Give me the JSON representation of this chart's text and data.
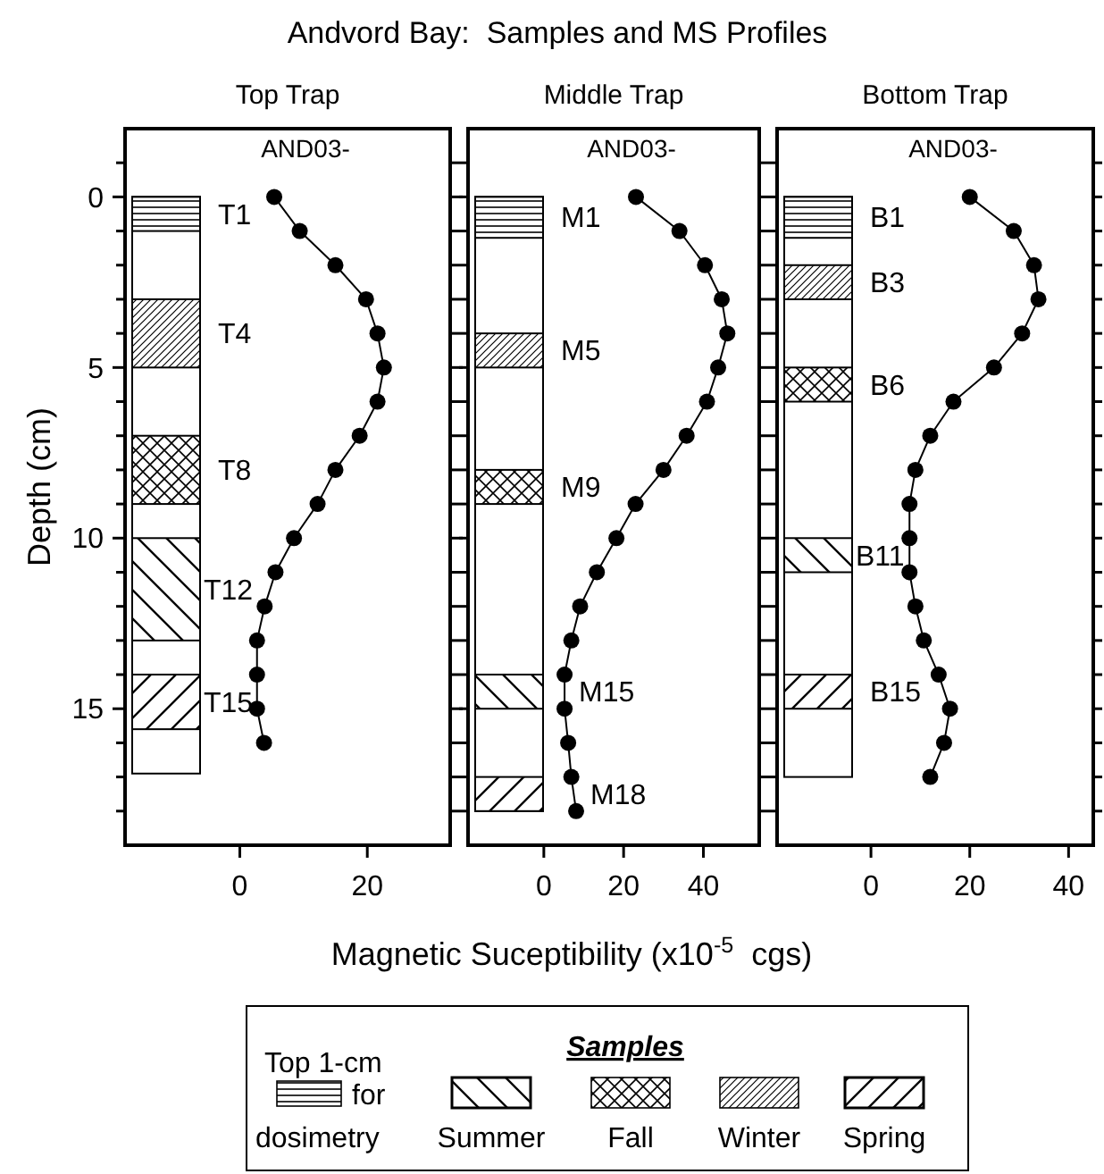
{
  "chart_data": [
    {
      "type": "line",
      "subtitle": "Top Trap",
      "ylabel": "Depth (cm)",
      "marker": "circle",
      "line_style": "solid",
      "grid": false,
      "series": [
        {
          "color": "#000000",
          "x": [
            5.4,
            9.4,
            15,
            19.8,
            21.6,
            22.6,
            21.6,
            18.8,
            15,
            12.2,
            8.5,
            5.6,
            3.9,
            2.7,
            2.7,
            2.7,
            3.8
          ],
          "values": [
            0,
            1,
            2,
            3,
            4,
            5,
            6,
            7,
            8,
            9,
            10,
            11,
            12,
            13,
            14,
            15,
            16
          ]
        }
      ],
      "xlim": [
        -18,
        33
      ],
      "xticks": [
        0,
        20
      ],
      "ylim": [
        19,
        -2
      ],
      "yticks": [
        {
          "value": -1,
          "label": null
        },
        0,
        {
          "value": 1,
          "label": null
        },
        {
          "value": 2,
          "label": null
        },
        {
          "value": 3,
          "label": null
        },
        {
          "value": 4,
          "label": null
        },
        5,
        {
          "value": 6,
          "label": null
        },
        {
          "value": 7,
          "label": null
        },
        {
          "value": 8,
          "label": null
        },
        {
          "value": 9,
          "label": null
        },
        10,
        {
          "value": 11,
          "label": null
        },
        {
          "value": 12,
          "label": null
        },
        {
          "value": 13,
          "label": null
        },
        {
          "value": 14,
          "label": null
        },
        15,
        {
          "value": 16,
          "label": null
        },
        {
          "value": 17,
          "label": null
        },
        {
          "value": 18,
          "label": null
        }
      ],
      "bands": [
        {
          "axis": "y",
          "from": 0,
          "to": 16.9
        },
        {
          "axis": "y",
          "from": 0,
          "to": 1,
          "label": "T1"
        },
        {
          "axis": "y",
          "from": 10,
          "to": 13,
          "label": "T12"
        },
        {
          "axis": "y",
          "from": 7,
          "to": 9,
          "label": "T8"
        },
        {
          "axis": "y",
          "from": 3,
          "to": 5,
          "label": "T4"
        },
        {
          "axis": "y",
          "from": 14,
          "to": 15.6,
          "label": "T15"
        }
      ],
      "annotations": [
        "AND03-"
      ]
    },
    {
      "type": "line",
      "title": "Andvord Bay:  Samples and MS Profiles",
      "subtitle": "Middle Trap",
      "xlabel": "Magnetic Suceptibility (x10$^{-5}$  cgs)",
      "marker": "circle",
      "line_style": "solid",
      "grid": false,
      "tick_labels": "x",
      "series": [
        {
          "color": "#000000",
          "x": [
            23.1,
            34,
            40.4,
            44.6,
            46,
            43.7,
            40.9,
            35.8,
            30,
            23,
            18.2,
            13.3,
            9.1,
            6.9,
            5.2,
            5.2,
            6.1,
            6.9,
            8.1
          ],
          "values": [
            0,
            1,
            2,
            3,
            4,
            5,
            6,
            7,
            8,
            9,
            10,
            11,
            12,
            13,
            14,
            15,
            16,
            17,
            18
          ]
        }
      ],
      "xlim": [
        -19,
        54
      ],
      "xticks": [
        0,
        20,
        40
      ],
      "ylim": [
        19,
        -2
      ],
      "yticks": [
        {
          "value": -1,
          "label": null
        },
        {
          "value": 0,
          "label": null
        },
        {
          "value": 1,
          "label": null
        },
        {
          "value": 2,
          "label": null
        },
        {
          "value": 3,
          "label": null
        },
        {
          "value": 4,
          "label": null
        },
        {
          "value": 5,
          "label": null
        },
        {
          "value": 6,
          "label": null
        },
        {
          "value": 7,
          "label": null
        },
        {
          "value": 8,
          "label": null
        },
        {
          "value": 9,
          "label": null
        },
        {
          "value": 10,
          "label": null
        },
        {
          "value": 11,
          "label": null
        },
        {
          "value": 12,
          "label": null
        },
        {
          "value": 13,
          "label": null
        },
        {
          "value": 14,
          "label": null
        },
        {
          "value": 15,
          "label": null
        },
        {
          "value": 16,
          "label": null
        },
        {
          "value": 17,
          "label": null
        },
        {
          "value": 18,
          "label": null
        }
      ],
      "bands": [
        {
          "axis": "y",
          "from": 0,
          "to": 18
        },
        {
          "axis": "y",
          "from": 0,
          "to": 1.2,
          "label": "M1"
        },
        {
          "axis": "y",
          "from": 14,
          "to": 15,
          "label": "M15"
        },
        {
          "axis": "y",
          "from": 8,
          "to": 9,
          "label": "M9"
        },
        {
          "axis": "y",
          "from": 4,
          "to": 5,
          "label": "M5"
        },
        {
          "axis": "y",
          "from": 17,
          "to": 18,
          "label": "M18"
        }
      ],
      "annotations": [
        "AND03-"
      ]
    },
    {
      "type": "line",
      "subtitle": "Bottom Trap",
      "marker": "circle",
      "line_style": "solid",
      "grid": false,
      "tick_labels": "x",
      "series": [
        {
          "color": "#000000",
          "x": [
            20,
            28.9,
            33,
            33.9,
            30.6,
            24.9,
            16.7,
            12,
            9,
            7.8,
            7.8,
            7.8,
            9,
            10.7,
            13.7,
            16,
            14.8,
            12
          ],
          "values": [
            0,
            1,
            2,
            3,
            4,
            5,
            6,
            7,
            8,
            9,
            10,
            11,
            12,
            13,
            14,
            15,
            16,
            17
          ]
        }
      ],
      "xlim": [
        -19,
        45
      ],
      "xticks": [
        0,
        20,
        40
      ],
      "ylim": [
        19,
        -2
      ],
      "yticks": [
        {
          "value": -1,
          "label": null
        },
        {
          "value": 0,
          "label": null
        },
        {
          "value": 1,
          "label": null
        },
        {
          "value": 2,
          "label": null
        },
        {
          "value": 3,
          "label": null
        },
        {
          "value": 4,
          "label": null
        },
        {
          "value": 5,
          "label": null
        },
        {
          "value": 6,
          "label": null
        },
        {
          "value": 7,
          "label": null
        },
        {
          "value": 8,
          "label": null
        },
        {
          "value": 9,
          "label": null
        },
        {
          "value": 10,
          "label": null
        },
        {
          "value": 11,
          "label": null
        },
        {
          "value": 12,
          "label": null
        },
        {
          "value": 13,
          "label": null
        },
        {
          "value": 14,
          "label": null
        },
        {
          "value": 15,
          "label": null
        },
        {
          "value": 16,
          "label": null
        },
        {
          "value": 17,
          "label": null
        },
        {
          "value": 18,
          "label": null
        }
      ],
      "bands": [
        {
          "axis": "y",
          "from": 0,
          "to": 17
        },
        {
          "axis": "y",
          "from": 0,
          "to": 1.2,
          "label": "B1"
        },
        {
          "axis": "y",
          "from": 10,
          "to": 11,
          "label": "B11"
        },
        {
          "axis": "y",
          "from": 5,
          "to": 6,
          "label": "B6"
        },
        {
          "axis": "y",
          "from": 2,
          "to": 3,
          "label": "B3"
        },
        {
          "axis": "y",
          "from": 14,
          "to": 15,
          "label": "B15"
        }
      ],
      "annotations": [
        "AND03-"
      ]
    },
    {
      "type": "other",
      "title": "Samples",
      "annotations": [
        "Top 1-cm for dosimetry",
        "Summer",
        "Fall",
        "Winter",
        "Spring"
      ]
    }
  ]
}
